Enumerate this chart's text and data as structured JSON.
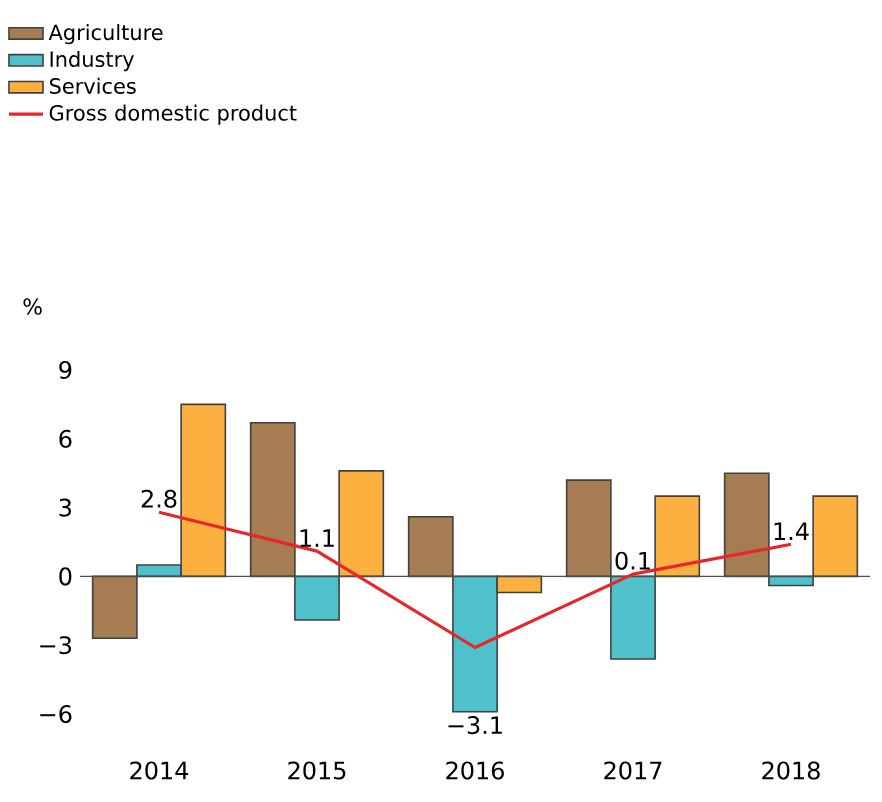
{
  "chart_data": {
    "type": "bar",
    "ylabel": "%",
    "categories": [
      "2014",
      "2015",
      "2016",
      "2017",
      "2018"
    ],
    "series": [
      {
        "name": "Agriculture",
        "color": "#a67c52",
        "values": [
          -2.7,
          6.7,
          2.6,
          4.2,
          4.5
        ]
      },
      {
        "name": "Industry",
        "color": "#4fc1cc",
        "values": [
          0.5,
          -1.9,
          -5.9,
          -3.6,
          -0.4
        ]
      },
      {
        "name": "Services",
        "color": "#fbb040",
        "values": [
          7.5,
          4.6,
          -0.7,
          3.5,
          3.5
        ]
      },
      {
        "name": "Gross domestic product",
        "type": "line",
        "color": "#e8262a",
        "values": [
          2.8,
          1.1,
          -3.1,
          0.1,
          1.4
        ],
        "value_labels": [
          "2.8",
          "1.1",
          "−3.1",
          "0.1",
          "1.4"
        ]
      }
    ],
    "ylim": [
      -6,
      9
    ],
    "ref_lines": [
      {
        "axis": "y",
        "value": 0,
        "color": "#4d4d4d"
      }
    ],
    "yticks": [
      {
        "value": -6,
        "label": "−6"
      },
      {
        "value": -3,
        "label": "−3"
      },
      0,
      3,
      6,
      9
    ],
    "legend": "top left",
    "grid": false
  }
}
